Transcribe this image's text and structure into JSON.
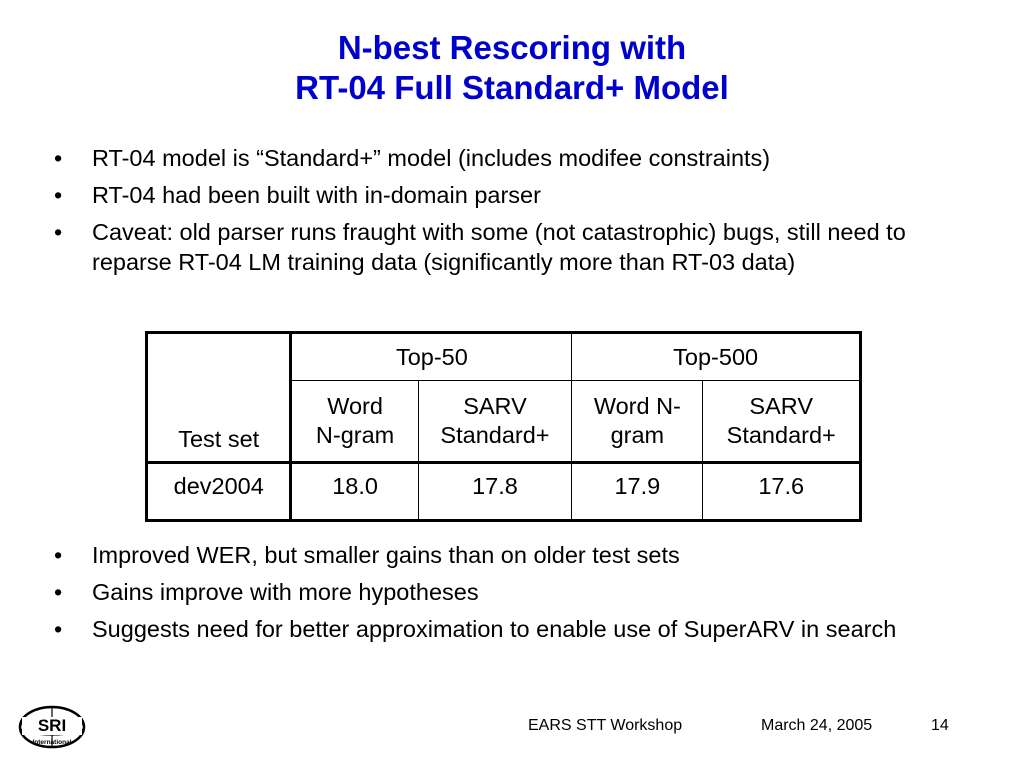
{
  "slide": {
    "title_line1": "N-best Rescoring with",
    "title_line2": "RT-04 Full Standard+ Model",
    "bullets_top": [
      "RT-04 model is “Standard+” model (includes modifee constraints)",
      "RT-04 had been built with in-domain parser",
      "Caveat: old parser runs fraught with some (not catastrophic) bugs, still need to reparse RT-04 LM training data (significantly more than RT-03 data)"
    ],
    "bullets_bottom": [
      "Improved WER, but smaller gains than on older test sets",
      "Gains improve with more hypotheses",
      "Suggests need for better approximation to enable use of SuperARV in search"
    ],
    "bullet_glyph": "•",
    "title_color": "#0000cc"
  },
  "table": {
    "header_test_set": "Test set",
    "group_top50": "Top-50",
    "group_top500": "Top-500",
    "col1_line1": "Word",
    "col1_line2": "N-gram",
    "col2_line1": "SARV",
    "col2_line2": "Standard+",
    "col3_line1": "Word N-",
    "col3_line2": "gram",
    "col4_line1": "SARV",
    "col4_line2": "Standard+",
    "rows": [
      {
        "test_set": "dev2004",
        "values": [
          "18.0",
          "17.8",
          "17.9",
          "17.6"
        ]
      }
    ]
  },
  "footer": {
    "workshop": "EARS STT Workshop",
    "date": "March 24, 2005",
    "page": "14",
    "logo_text": "SRI",
    "logo_subtext": "International"
  }
}
